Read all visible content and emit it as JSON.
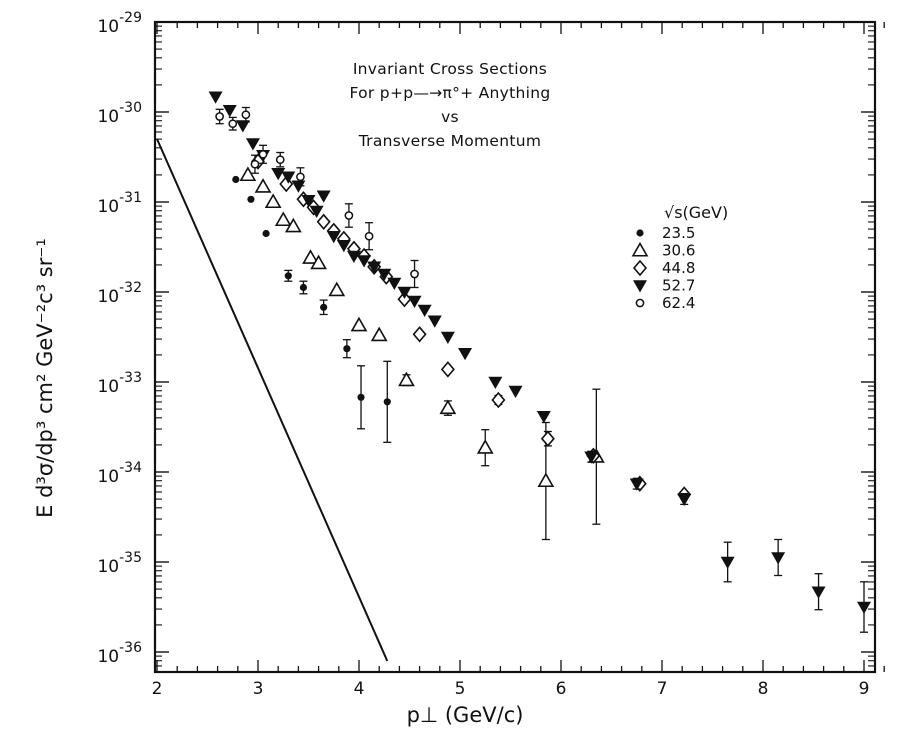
{
  "chart_data": {
    "type": "scatter",
    "title_lines": [
      "Invariant Cross Sections",
      "For p+p—→π°+ Anything",
      "vs",
      "Transverse Momentum"
    ],
    "xlabel": "p⊥  (GeV/c)",
    "ylabel": "E d³σ/dp³  cm² GeV⁻²c³ sr⁻¹",
    "xlim": [
      2,
      9.3
    ],
    "ylim_exponent": [
      -36.1,
      -29
    ],
    "y_scale": "log",
    "x_ticks": [
      "2",
      "3",
      "4",
      "5",
      "6",
      "7",
      "8",
      "9"
    ],
    "y_ticks": [
      "10-29",
      "10-30",
      "10-31",
      "10-32",
      "10-33",
      "10-34",
      "10-35",
      "10-36"
    ],
    "legend_title": "√s(GeV)",
    "legend_position": "right",
    "series": [
      {
        "name": "23.5",
        "marker": "filled-circle",
        "points": [
          [
            2.78,
            -30.75
          ],
          [
            2.93,
            -30.97
          ],
          [
            3.08,
            -31.35
          ],
          [
            3.3,
            -31.82
          ],
          [
            3.45,
            -31.95
          ],
          [
            3.65,
            -32.17
          ],
          [
            3.88,
            -32.63
          ],
          [
            4.02,
            -33.17
          ],
          [
            4.28,
            -33.22
          ]
        ],
        "errors": [
          0,
          0,
          0,
          0.06,
          0.07,
          0.08,
          0.1,
          0.35,
          0.45
        ]
      },
      {
        "name": "30.6",
        "marker": "open-triangle-up",
        "points": [
          [
            2.9,
            -30.7
          ],
          [
            3.05,
            -30.83
          ],
          [
            3.15,
            -31.0
          ],
          [
            3.25,
            -31.2
          ],
          [
            3.35,
            -31.27
          ],
          [
            3.52,
            -31.62
          ],
          [
            3.6,
            -31.68
          ],
          [
            3.78,
            -31.98
          ],
          [
            4.0,
            -32.37
          ],
          [
            4.2,
            -32.48
          ],
          [
            4.47,
            -32.98
          ],
          [
            4.88,
            -33.29
          ],
          [
            5.25,
            -33.73
          ],
          [
            5.85,
            -34.1
          ],
          [
            6.35,
            -33.83
          ]
        ],
        "errors": [
          0,
          0,
          0,
          0,
          0,
          0,
          0,
          0,
          0,
          0,
          0.06,
          0.08,
          0.2,
          0.65,
          0.75
        ]
      },
      {
        "name": "44.8",
        "marker": "open-diamond",
        "points": [
          [
            3.0,
            -30.55
          ],
          [
            3.28,
            -30.8
          ],
          [
            3.45,
            -30.97
          ],
          [
            3.55,
            -31.06
          ],
          [
            3.65,
            -31.22
          ],
          [
            3.75,
            -31.32
          ],
          [
            3.85,
            -31.41
          ],
          [
            3.95,
            -31.52
          ],
          [
            4.05,
            -31.6
          ],
          [
            4.15,
            -31.72
          ],
          [
            4.27,
            -31.83
          ],
          [
            4.45,
            -32.08
          ],
          [
            4.6,
            -32.47
          ],
          [
            4.88,
            -32.86
          ],
          [
            5.38,
            -33.2
          ],
          [
            5.87,
            -33.63
          ],
          [
            6.32,
            -33.82
          ],
          [
            6.78,
            -34.13
          ],
          [
            7.22,
            -34.25
          ]
        ],
        "errors": [
          0,
          0,
          0,
          0,
          0,
          0,
          0,
          0,
          0,
          0,
          0,
          0,
          0,
          0,
          0.05,
          0.08,
          0,
          0,
          0
        ]
      },
      {
        "name": "52.7",
        "marker": "filled-triangle-down",
        "points": [
          [
            2.58,
            -29.83
          ],
          [
            2.72,
            -29.98
          ],
          [
            2.85,
            -30.15
          ],
          [
            2.95,
            -30.35
          ],
          [
            3.05,
            -30.48
          ],
          [
            3.2,
            -30.68
          ],
          [
            3.3,
            -30.72
          ],
          [
            3.4,
            -30.82
          ],
          [
            3.5,
            -30.98
          ],
          [
            3.58,
            -31.1
          ],
          [
            3.65,
            -30.93
          ],
          [
            3.75,
            -31.38
          ],
          [
            3.85,
            -31.48
          ],
          [
            3.95,
            -31.6
          ],
          [
            4.05,
            -31.65
          ],
          [
            4.15,
            -31.72
          ],
          [
            4.25,
            -31.8
          ],
          [
            4.35,
            -31.9
          ],
          [
            4.45,
            -32.0
          ],
          [
            4.55,
            -32.1
          ],
          [
            4.65,
            -32.2
          ],
          [
            4.75,
            -32.32
          ],
          [
            4.88,
            -32.5
          ],
          [
            5.05,
            -32.68
          ],
          [
            5.35,
            -33.0
          ],
          [
            5.55,
            -33.1
          ],
          [
            5.83,
            -33.38
          ],
          [
            6.3,
            -33.83
          ],
          [
            6.75,
            -34.13
          ],
          [
            7.22,
            -34.3
          ],
          [
            7.65,
            -35.0
          ],
          [
            8.15,
            -34.95
          ],
          [
            8.55,
            -35.33
          ],
          [
            9.0,
            -35.5
          ]
        ],
        "errors": [
          0,
          0,
          0,
          0,
          0,
          0,
          0,
          0,
          0,
          0,
          0,
          0,
          0,
          0,
          0,
          0,
          0,
          0,
          0,
          0,
          0,
          0,
          0,
          0,
          0,
          0,
          0,
          0.06,
          0.06,
          0.06,
          0.22,
          0.2,
          0.2,
          0.28
        ]
      },
      {
        "name": "62.4",
        "marker": "open-circle",
        "points": [
          [
            2.62,
            -30.05
          ],
          [
            2.75,
            -30.13
          ],
          [
            2.88,
            -30.03
          ],
          [
            2.97,
            -30.58
          ],
          [
            3.05,
            -30.47
          ],
          [
            3.22,
            -30.53
          ],
          [
            3.42,
            -30.72
          ],
          [
            3.9,
            -31.15
          ],
          [
            4.1,
            -31.38
          ],
          [
            4.55,
            -31.8
          ]
        ],
        "errors": [
          0.08,
          0.07,
          0.08,
          0.1,
          0.1,
          0.08,
          0.1,
          0.13,
          0.15,
          0.15
        ]
      }
    ],
    "reference_line": [
      [
        2.0,
        -30.3
      ],
      [
        4.28,
        -36.1
      ]
    ]
  }
}
